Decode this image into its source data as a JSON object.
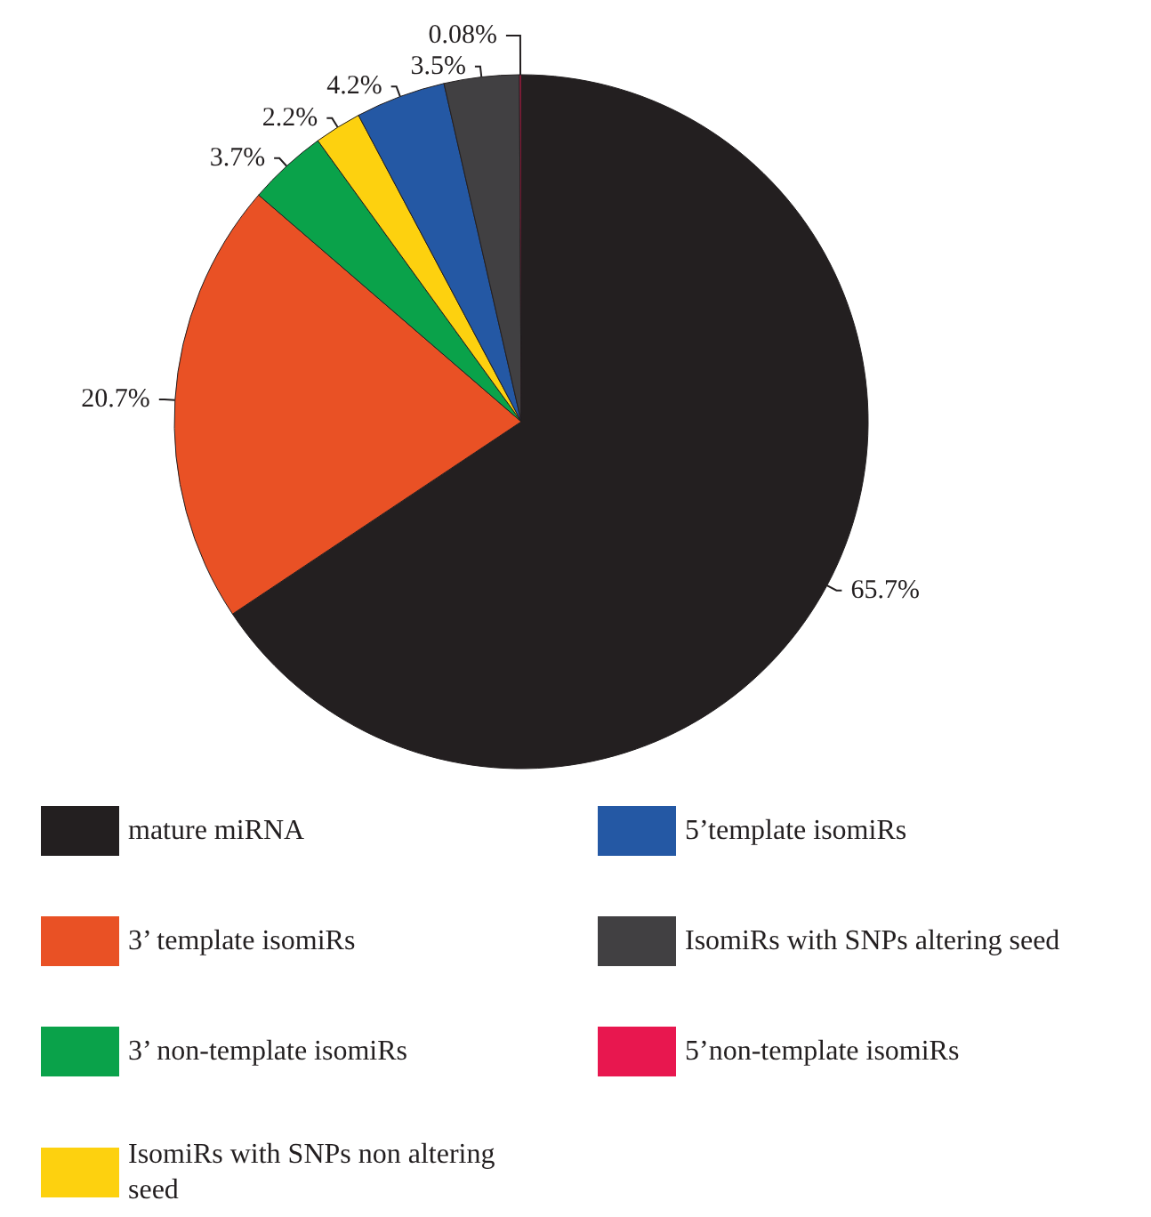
{
  "chart_data": {
    "type": "pie",
    "categories": [
      "mature miRNA",
      "3’ template isomiRs",
      "3’ non-template isomiRs",
      "IsomiRs with SNPs non altering seed",
      "5’template isomiRs",
      "IsomiRs with SNPs altering seed",
      "5’non-template isomiRs"
    ],
    "values": [
      65.7,
      20.7,
      3.7,
      2.2,
      4.2,
      3.5,
      0.08
    ],
    "colors": [
      "#231f20",
      "#e95125",
      "#0aa24a",
      "#fdd10f",
      "#2458a4",
      "#414042",
      "#e8174f"
    ],
    "value_labels": [
      "65.7%",
      "20.7%",
      "3.7%",
      "2.2%",
      "4.2%",
      "3.5%",
      "0.08%"
    ],
    "legend": "bottom"
  }
}
